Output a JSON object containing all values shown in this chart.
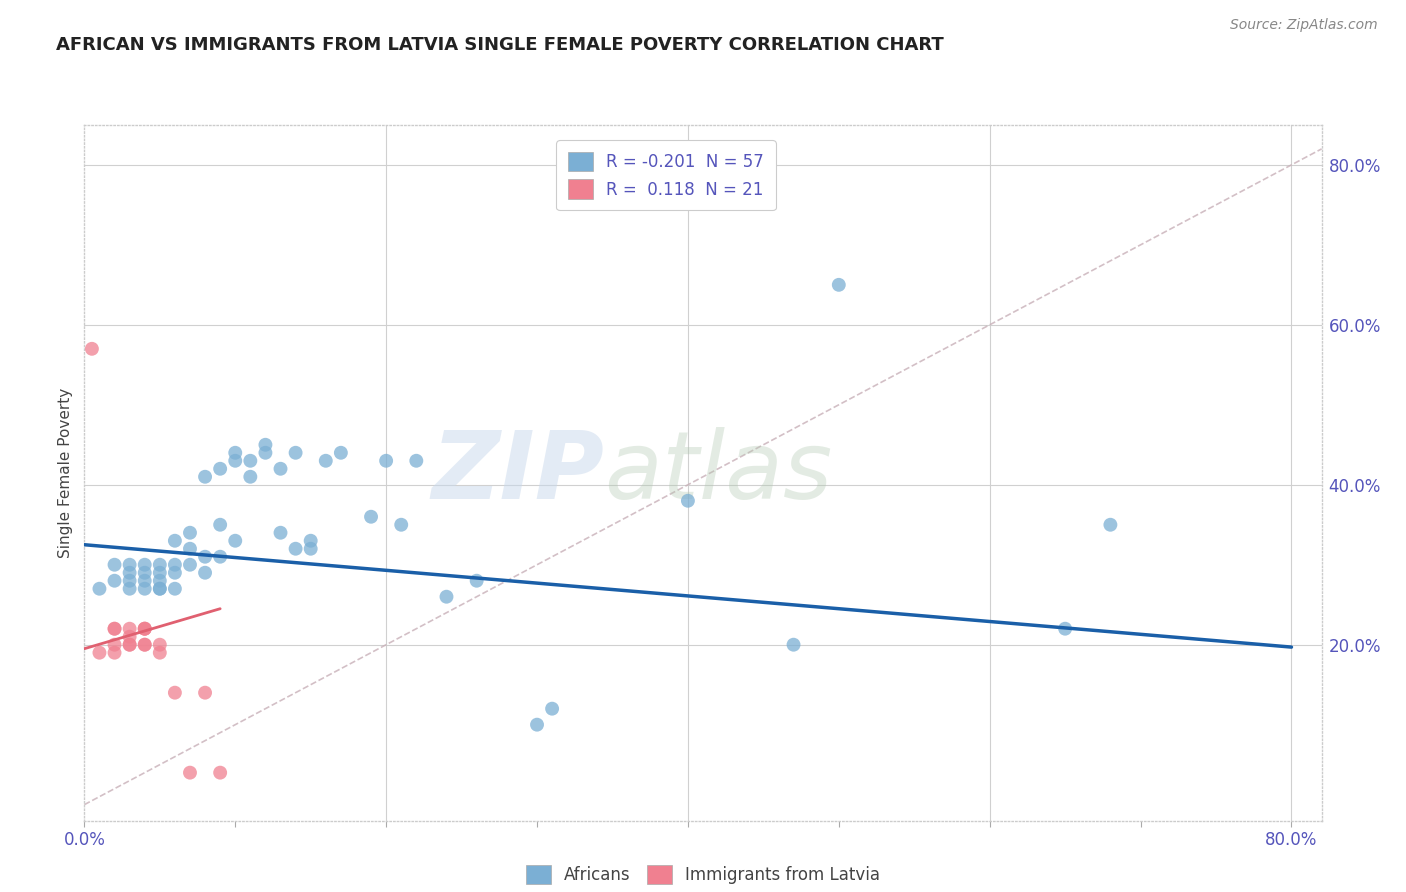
{
  "title": "AFRICAN VS IMMIGRANTS FROM LATVIA SINGLE FEMALE POVERTY CORRELATION CHART",
  "source": "Source: ZipAtlas.com",
  "ylabel": "Single Female Poverty",
  "legend_entries": [
    {
      "label": "R = -0.201  N = 57",
      "color": "#aec6e8"
    },
    {
      "label": "R =  0.118  N = 21",
      "color": "#f4b8c1"
    }
  ],
  "legend_label_africans": "Africans",
  "legend_label_latvia": "Immigrants from Latvia",
  "watermark_zip": "ZIP",
  "watermark_atlas": "atlas",
  "xlim": [
    0.0,
    0.82
  ],
  "ylim": [
    -0.02,
    0.85
  ],
  "yticks": [
    0.2,
    0.4,
    0.6,
    0.8
  ],
  "ytick_labels": [
    "20.0%",
    "40.0%",
    "60.0%",
    "80.0%"
  ],
  "xticks": [
    0.0,
    0.1,
    0.2,
    0.3,
    0.4,
    0.5,
    0.6,
    0.7,
    0.8
  ],
  "xtick_labels": [
    "0.0%",
    "",
    "",
    "",
    "",
    "",
    "",
    "",
    "80.0%"
  ],
  "background_color": "#ffffff",
  "grid_color": "#d0d0d0",
  "blue_scatter_color": "#7bafd4",
  "pink_scatter_color": "#f08090",
  "blue_line_color": "#1a5fa8",
  "pink_line_color": "#e06070",
  "dashed_line_color": "#c8b0b8",
  "title_color": "#222222",
  "axis_label_color": "#5555bb",
  "blue_x": [
    0.01,
    0.02,
    0.02,
    0.03,
    0.03,
    0.03,
    0.03,
    0.04,
    0.04,
    0.04,
    0.04,
    0.05,
    0.05,
    0.05,
    0.05,
    0.05,
    0.06,
    0.06,
    0.06,
    0.06,
    0.07,
    0.07,
    0.07,
    0.08,
    0.08,
    0.08,
    0.09,
    0.09,
    0.09,
    0.1,
    0.1,
    0.1,
    0.11,
    0.11,
    0.12,
    0.12,
    0.13,
    0.13,
    0.14,
    0.14,
    0.15,
    0.15,
    0.16,
    0.17,
    0.19,
    0.2,
    0.21,
    0.22,
    0.24,
    0.26,
    0.3,
    0.31,
    0.4,
    0.47,
    0.5,
    0.65,
    0.68
  ],
  "blue_y": [
    0.27,
    0.28,
    0.3,
    0.29,
    0.3,
    0.28,
    0.27,
    0.28,
    0.3,
    0.29,
    0.27,
    0.27,
    0.28,
    0.29,
    0.3,
    0.27,
    0.29,
    0.3,
    0.33,
    0.27,
    0.32,
    0.3,
    0.34,
    0.31,
    0.29,
    0.41,
    0.31,
    0.42,
    0.35,
    0.43,
    0.44,
    0.33,
    0.41,
    0.43,
    0.44,
    0.45,
    0.34,
    0.42,
    0.32,
    0.44,
    0.32,
    0.33,
    0.43,
    0.44,
    0.36,
    0.43,
    0.35,
    0.43,
    0.26,
    0.28,
    0.1,
    0.12,
    0.38,
    0.2,
    0.65,
    0.22,
    0.35
  ],
  "pink_x": [
    0.005,
    0.01,
    0.02,
    0.02,
    0.02,
    0.02,
    0.03,
    0.03,
    0.03,
    0.03,
    0.04,
    0.04,
    0.04,
    0.04,
    0.04,
    0.05,
    0.05,
    0.06,
    0.07,
    0.08,
    0.09
  ],
  "pink_y": [
    0.57,
    0.19,
    0.22,
    0.22,
    0.2,
    0.19,
    0.22,
    0.2,
    0.2,
    0.21,
    0.2,
    0.22,
    0.22,
    0.2,
    0.22,
    0.19,
    0.2,
    0.14,
    0.04,
    0.14,
    0.04
  ],
  "blue_trend_x": [
    0.0,
    0.8
  ],
  "blue_trend_y": [
    0.325,
    0.197
  ],
  "pink_trend_x": [
    0.0,
    0.09
  ],
  "pink_trend_y": [
    0.195,
    0.245
  ],
  "diag_line_x": [
    0.0,
    0.82
  ],
  "diag_line_y": [
    0.0,
    0.82
  ]
}
